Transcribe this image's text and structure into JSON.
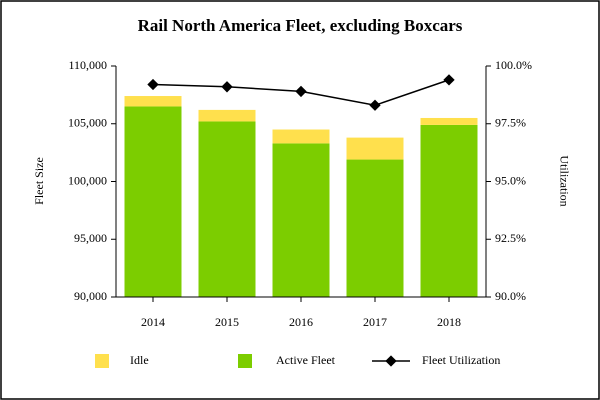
{
  "chart_data": {
    "type": "bar",
    "title": "Rail North America Fleet, excluding Boxcars",
    "y_label": "Fleet Size",
    "y2_label": "Utilization",
    "categories": [
      "2014",
      "2015",
      "2016",
      "2017",
      "2018"
    ],
    "stacked": true,
    "series": [
      {
        "name": "Idle",
        "color": "#ffe04d",
        "values": [
          900,
          1000,
          1200,
          1900,
          600
        ]
      },
      {
        "name": "Active Fleet",
        "color": "#7ccd00",
        "values": [
          106500,
          105200,
          103300,
          101900,
          104900
        ]
      },
      {
        "name": "Fleet Utilization",
        "color": "#000000",
        "type": "line",
        "axis": "y2",
        "values": [
          99.2,
          99.1,
          98.9,
          98.3,
          99.4
        ]
      }
    ],
    "ylim": [
      90000,
      110000
    ],
    "yticks": [
      {
        "value": 90000,
        "label": "90,000"
      },
      {
        "value": 95000,
        "label": "95,000"
      },
      {
        "value": 100000,
        "label": "100,000"
      },
      {
        "value": 105000,
        "label": "105,000"
      },
      {
        "value": 110000,
        "label": "110,000"
      }
    ],
    "y2lim": [
      90,
      100
    ],
    "y2ticks": [
      {
        "value": 90,
        "label": "90.0%"
      },
      {
        "value": 92.5,
        "label": "92.5%"
      },
      {
        "value": 95,
        "label": "95.0%"
      },
      {
        "value": 97.5,
        "label": "97.5%"
      },
      {
        "value": 100,
        "label": "100.0%"
      }
    ],
    "grid": false
  }
}
